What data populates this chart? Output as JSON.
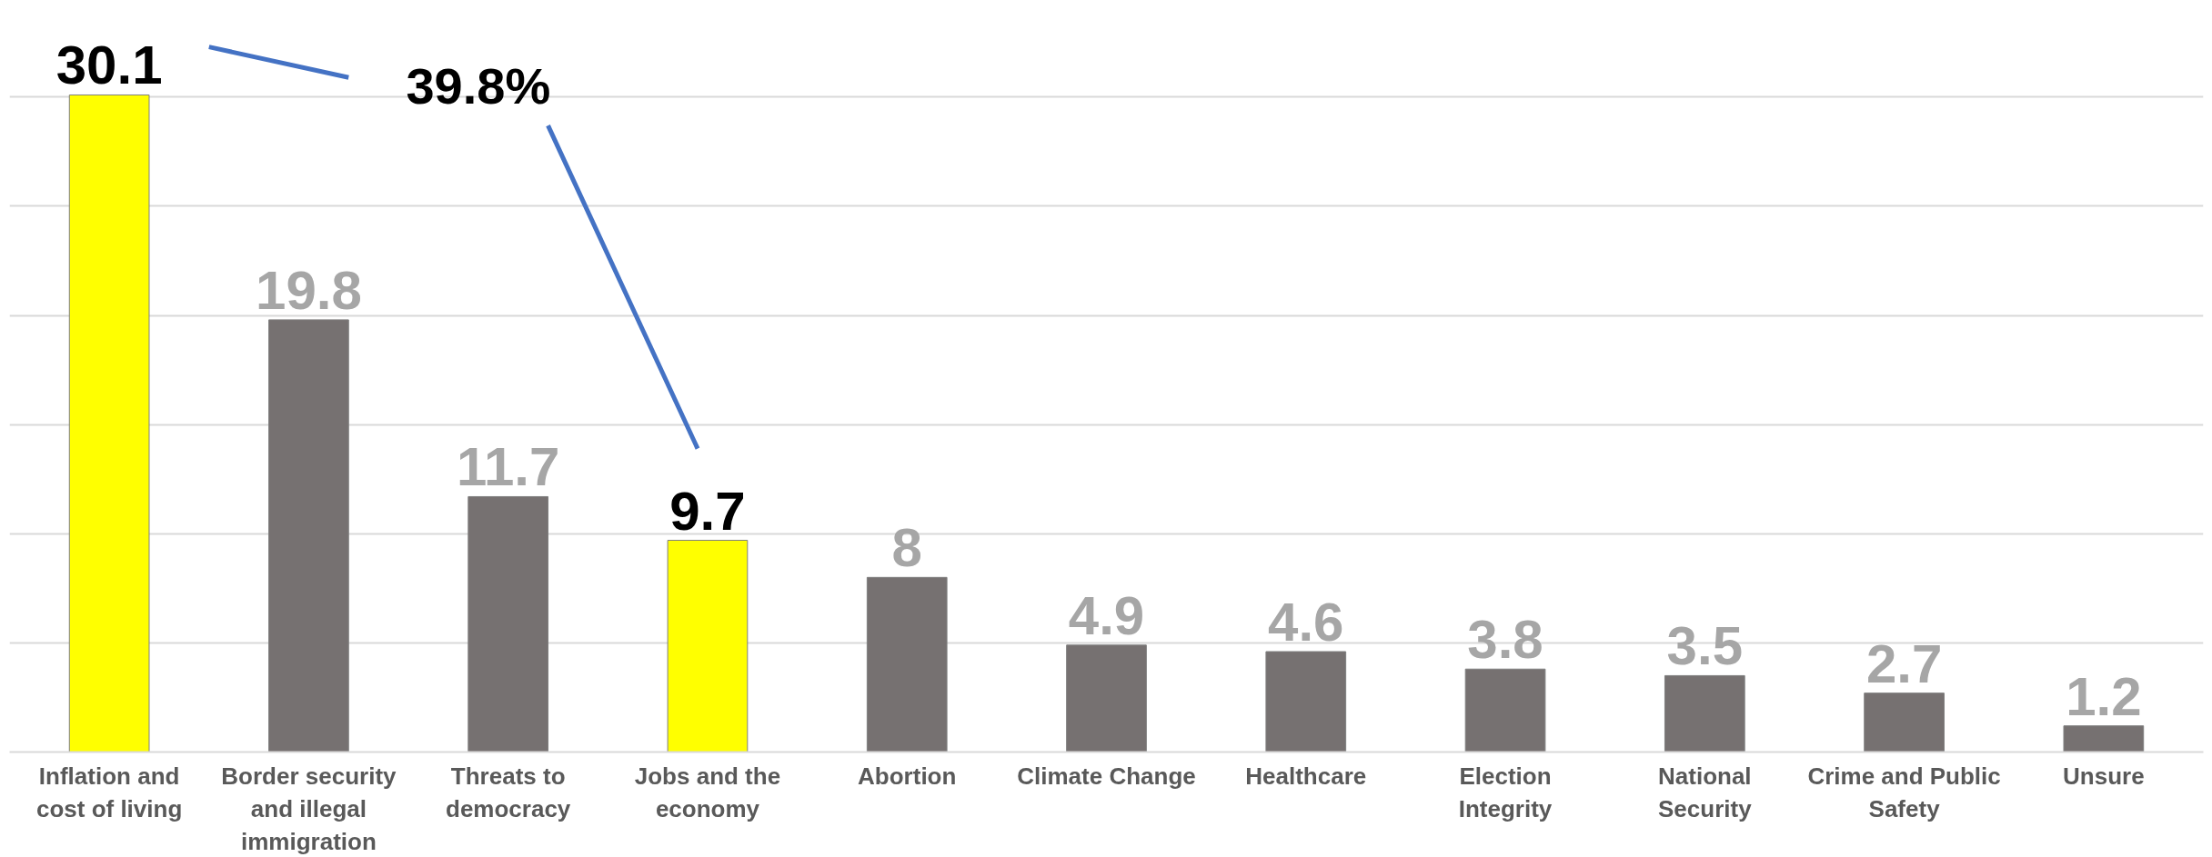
{
  "chart_data": {
    "type": "bar",
    "categories": [
      "Inflation and cost of living",
      "Border security and illegal immigration",
      "Threats to democracy",
      "Jobs and the economy",
      "Abortion",
      "Climate Change",
      "Healthcare",
      "Election Integrity",
      "National Security",
      "Crime and Public Safety",
      "Unsure"
    ],
    "values": [
      30.1,
      19.8,
      11.7,
      9.7,
      8,
      4.9,
      4.6,
      3.8,
      3.5,
      2.7,
      1.2
    ],
    "colors": [
      "#ffff00",
      "#767171",
      "#767171",
      "#ffff00",
      "#767171",
      "#767171",
      "#767171",
      "#767171",
      "#767171",
      "#767171",
      "#767171"
    ],
    "yticks": [
      {
        "value": 0,
        "label": null
      },
      {
        "value": 5,
        "label": null
      },
      {
        "value": 10,
        "label": null
      },
      {
        "value": 15,
        "label": null
      },
      {
        "value": 20,
        "label": null
      },
      {
        "value": 25,
        "label": null
      },
      {
        "value": 30,
        "label": null
      }
    ],
    "tick_labels": "x",
    "grid": "y",
    "data_labels": true,
    "annotations": [
      "39.8%"
    ]
  }
}
